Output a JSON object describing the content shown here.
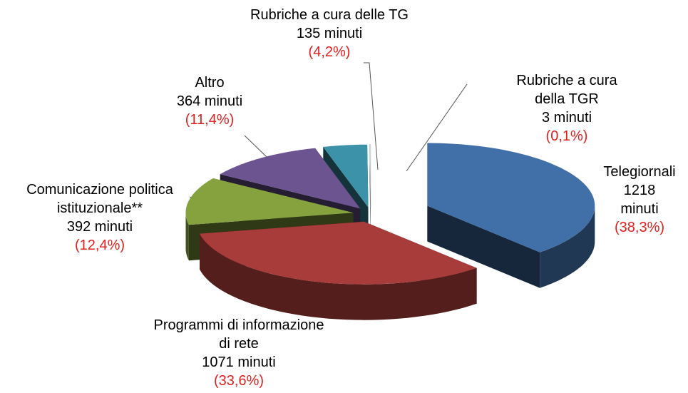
{
  "chart_data": {
    "type": "pie",
    "categories": [
      "Telegiornali",
      "Programmi di informazione\ndi rete",
      "Comunicazione politica\nistituzionale**",
      "Altro",
      "Rubriche a cura delle TG",
      "Rubriche a cura della TGR"
    ],
    "values": [
      1218,
      1071,
      392,
      364,
      135,
      3
    ],
    "value_labels": [
      "1218 minuti",
      "1071 minuti",
      "392 minuti",
      "364 minuti",
      "135 minuti",
      "3 minuti"
    ],
    "percentages": [
      38.3,
      33.6,
      12.4,
      11.4,
      4.2,
      0.1
    ],
    "percentage_labels": [
      "(38,3%)",
      "(33,6%)",
      "(12,4%)",
      "(11,4%)",
      "(4,2%)",
      "(0,1%)"
    ],
    "colors": [
      "#4170a8",
      "#a83c3a",
      "#86a23f",
      "#6b5490",
      "#3c93a9",
      "#e8eef5"
    ]
  }
}
